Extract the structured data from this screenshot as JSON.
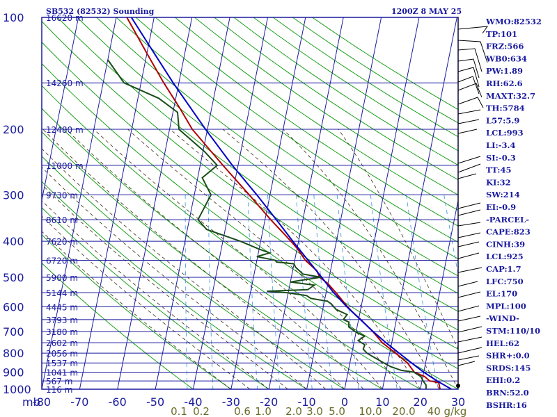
{
  "header": {
    "station": "SB532 (82532) Sounding",
    "time": "1200Z  8 MAY 25"
  },
  "chart_data": {
    "type": "line",
    "title": "SB532 (82532) Sounding",
    "xlabel": "",
    "ylabel": "mb",
    "xlim": [
      -80,
      30
    ],
    "ylim": [
      1000,
      100
    ],
    "y_scale": "log",
    "grid": true,
    "pressure_ticks": [
      "100",
      "200",
      "300",
      "400",
      "500",
      "600",
      "700",
      "800",
      "900",
      "1000"
    ],
    "pressure_values": [
      100,
      200,
      300,
      400,
      500,
      600,
      700,
      800,
      900,
      1000
    ],
    "temp_ticks": [
      "-80",
      "-70",
      "-60",
      "-50",
      "-40",
      "-30",
      "-20",
      "-10",
      "0",
      "10",
      "20",
      "30"
    ],
    "temp_values": [
      -80,
      -70,
      -60,
      -50,
      -40,
      -30,
      -20,
      -10,
      0,
      10,
      20,
      30
    ],
    "unit_label": "mb",
    "height_labels": [
      {
        "p": 100,
        "text": "16620 m"
      },
      {
        "p": 150,
        "text": "14260 m"
      },
      {
        "p": 200,
        "text": "12480 m"
      },
      {
        "p": 250,
        "text": "11000 m"
      },
      {
        "p": 300,
        "text": "9730 m"
      },
      {
        "p": 350,
        "text": "8610 m"
      },
      {
        "p": 400,
        "text": "7620 m"
      },
      {
        "p": 450,
        "text": "6720 m"
      },
      {
        "p": 500,
        "text": "5900 m"
      },
      {
        "p": 550,
        "text": "5144 m"
      },
      {
        "p": 600,
        "text": "4445 m"
      },
      {
        "p": 650,
        "text": "3793 m"
      },
      {
        "p": 700,
        "text": "3180 m"
      },
      {
        "p": 750,
        "text": "2602 m"
      },
      {
        "p": 800,
        "text": "2056 m"
      },
      {
        "p": 850,
        "text": "1537 m"
      },
      {
        "p": 900,
        "text": "1041 m"
      },
      {
        "p": 950,
        "text": "567 m"
      },
      {
        "p": 1000,
        "text": "116 m"
      }
    ],
    "mixing_ratio_labels": [
      "0.1",
      "0.2",
      "0.6",
      "1.0",
      "2.0",
      "3.0",
      "5.0",
      "10.0",
      "20.0",
      "40 g/kg"
    ],
    "series": [
      {
        "kind": "temperature",
        "color": "#b00000",
        "points": [
          [
            1000,
            25.2
          ],
          [
            960,
            24.5
          ],
          [
            950,
            22.0
          ],
          [
            925,
            20.5
          ],
          [
            900,
            17.5
          ],
          [
            850,
            15.2
          ],
          [
            800,
            11.6
          ],
          [
            750,
            7.5
          ],
          [
            700,
            4.4
          ],
          [
            650,
            0.6
          ],
          [
            620,
            -2.0
          ],
          [
            600,
            -3.6
          ],
          [
            550,
            -7.4
          ],
          [
            520,
            -10.0
          ],
          [
            500,
            -12.5
          ],
          [
            480,
            -13.6
          ],
          [
            450,
            -17.2
          ],
          [
            420,
            -19.8
          ],
          [
            400,
            -22.0
          ],
          [
            350,
            -28.5
          ],
          [
            300,
            -35.5
          ],
          [
            250,
            -44.0
          ],
          [
            200,
            -54.0
          ],
          [
            175,
            -58.5
          ],
          [
            150,
            -64.0
          ],
          [
            125,
            -70.0
          ],
          [
            100,
            -77.2
          ]
        ]
      },
      {
        "kind": "dewpoint",
        "color": "#1a4d1a",
        "points": [
          [
            1000,
            21.5
          ],
          [
            975,
            21.3
          ],
          [
            950,
            20.3
          ],
          [
            925,
            19.5
          ],
          [
            900,
            17.4
          ],
          [
            890,
            14.0
          ],
          [
            870,
            11.0
          ],
          [
            850,
            9.0
          ],
          [
            825,
            6.5
          ],
          [
            800,
            4.0
          ],
          [
            780,
            2.8
          ],
          [
            760,
            3.0
          ],
          [
            740,
            1.0
          ],
          [
            720,
            2.5
          ],
          [
            700,
            -0.3
          ],
          [
            680,
            -2.2
          ],
          [
            660,
            -2.4
          ],
          [
            650,
            -4.0
          ],
          [
            630,
            -3.3
          ],
          [
            610,
            -6.5
          ],
          [
            590,
            -8.0
          ],
          [
            580,
            -9.2
          ],
          [
            570,
            -13.7
          ],
          [
            560,
            -15.0
          ],
          [
            550,
            -20.4
          ],
          [
            545,
            -25.7
          ],
          [
            540,
            -15.0
          ],
          [
            525,
            -13.5
          ],
          [
            515,
            -20.0
          ],
          [
            500,
            -12.2
          ],
          [
            490,
            -17.1
          ],
          [
            470,
            -19.4
          ],
          [
            460,
            -20.0
          ],
          [
            455,
            -24.7
          ],
          [
            450,
            -25.2
          ],
          [
            440,
            -30.2
          ],
          [
            430,
            -27.0
          ],
          [
            420,
            -30.0
          ],
          [
            400,
            -35.4
          ],
          [
            372,
            -44.9
          ],
          [
            350,
            -47.7
          ],
          [
            300,
            -45.6
          ],
          [
            270,
            -48.8
          ],
          [
            250,
            -45.5
          ],
          [
            230,
            -49.5
          ],
          [
            200,
            -57.5
          ],
          [
            180,
            -58.8
          ],
          [
            165,
            -64.5
          ],
          [
            150,
            -74.5
          ],
          [
            130,
            -80.0
          ]
        ]
      },
      {
        "kind": "parcel",
        "color": "#0000c8",
        "points": [
          [
            1000,
            28.2
          ],
          [
            950,
            24.0
          ],
          [
            900,
            20.0
          ],
          [
            850,
            16.3
          ],
          [
            800,
            12.5
          ],
          [
            750,
            8.5
          ],
          [
            700,
            4.5
          ],
          [
            650,
            0.5
          ],
          [
            600,
            -3.8
          ],
          [
            550,
            -8.0
          ],
          [
            500,
            -12.0
          ],
          [
            450,
            -16.5
          ],
          [
            400,
            -21.5
          ],
          [
            350,
            -27.0
          ],
          [
            300,
            -33.5
          ],
          [
            250,
            -41.5
          ],
          [
            200,
            -50.5
          ],
          [
            150,
            -61.5
          ],
          [
            120,
            -69.5
          ],
          [
            100,
            -76.0
          ]
        ]
      }
    ]
  },
  "indices": [
    "WMO:82532",
    "TP:101",
    "FRZ:566",
    "WB0:634",
    "PW:1.89",
    "RH:62.6",
    "MAXT:32.7",
    "TH:5784",
    "L57:5.9",
    "LCL:993",
    "LI:-3.4",
    "SI:-0.3",
    "TT:45",
    "KI:32",
    "SW:214",
    "EI:-0.9",
    "-PARCEL-",
    "CAPE:823",
    "CINH:39",
    "LCL:925",
    "CAP:1.7",
    "LFC:750",
    "EL:170",
    "MPL:100",
    "-WIND-",
    "STM:110/10",
    "HEL:62",
    "SHR+:0.0",
    "SRDS:145",
    "EHI:0.2",
    "BRN:52.0",
    "BSHR:16"
  ],
  "colors": {
    "frame": "#1a1aa0",
    "isotherm": "#1a1aa0",
    "dry_adiabat": "#1aa01a",
    "moist_adiabat": "#3a2a10",
    "mixing_ratio": "#4aa0e0",
    "temperature": "#b00000",
    "dewpoint": "#1a4d1a",
    "parcel": "#0000c8"
  }
}
